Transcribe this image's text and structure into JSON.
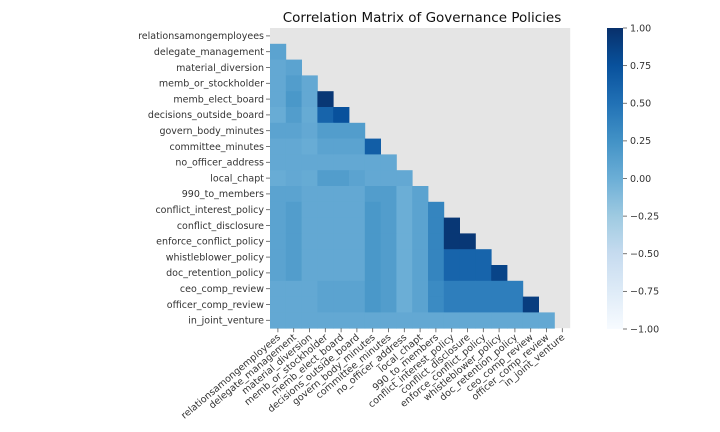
{
  "chart_data": {
    "type": "heatmap",
    "title": "Correlation Matrix of Governance Policies",
    "variables": [
      "relationsamongemployees",
      "delegate_management",
      "material_diversion",
      "memb_or_stockholder",
      "memb_elect_board",
      "decisions_outside_board",
      "govern_body_minutes",
      "committee_minutes",
      "no_officer_address",
      "local_chapt",
      "990_to_members",
      "conflict_interest_policy",
      "conflict_disclosure",
      "enforce_conflict_policy",
      "whistleblower_policy",
      "doc_retention_policy",
      "ceo_comp_review",
      "officer_comp_review",
      "in_joint_venture"
    ],
    "mask": "upper-triangle-and-diagonal",
    "masked_color": "#e5e5e5",
    "matrix": [
      [
        null,
        null,
        null,
        null,
        null,
        null,
        null,
        null,
        null,
        null,
        null,
        null,
        null,
        null,
        null,
        null,
        null,
        null,
        null
      ],
      [
        0.1,
        null,
        null,
        null,
        null,
        null,
        null,
        null,
        null,
        null,
        null,
        null,
        null,
        null,
        null,
        null,
        null,
        null,
        null
      ],
      [
        0.05,
        0.1,
        null,
        null,
        null,
        null,
        null,
        null,
        null,
        null,
        null,
        null,
        null,
        null,
        null,
        null,
        null,
        null,
        null
      ],
      [
        0.05,
        0.15,
        0.05,
        null,
        null,
        null,
        null,
        null,
        null,
        null,
        null,
        null,
        null,
        null,
        null,
        null,
        null,
        null,
        null
      ],
      [
        0.05,
        0.2,
        0.05,
        0.95,
        null,
        null,
        null,
        null,
        null,
        null,
        null,
        null,
        null,
        null,
        null,
        null,
        null,
        null,
        null
      ],
      [
        0.02,
        0.15,
        0.03,
        0.6,
        0.75,
        null,
        null,
        null,
        null,
        null,
        null,
        null,
        null,
        null,
        null,
        null,
        null,
        null,
        null
      ],
      [
        0.1,
        0.1,
        0.05,
        0.15,
        0.15,
        0.15,
        null,
        null,
        null,
        null,
        null,
        null,
        null,
        null,
        null,
        null,
        null,
        null,
        null
      ],
      [
        0.05,
        0.05,
        0.02,
        0.1,
        0.1,
        0.1,
        0.65,
        null,
        null,
        null,
        null,
        null,
        null,
        null,
        null,
        null,
        null,
        null,
        null
      ],
      [
        0.05,
        0.05,
        0.05,
        0.05,
        0.05,
        0.05,
        0.05,
        0.05,
        null,
        null,
        null,
        null,
        null,
        null,
        null,
        null,
        null,
        null,
        null
      ],
      [
        0.02,
        0.05,
        0.03,
        0.15,
        0.15,
        0.1,
        0.05,
        0.05,
        0.05,
        null,
        null,
        null,
        null,
        null,
        null,
        null,
        null,
        null,
        null
      ],
      [
        0.1,
        0.1,
        0.05,
        0.05,
        0.05,
        0.05,
        0.15,
        0.15,
        0.0,
        0.1,
        null,
        null,
        null,
        null,
        null,
        null,
        null,
        null,
        null
      ],
      [
        0.1,
        0.15,
        0.05,
        0.05,
        0.05,
        0.05,
        0.2,
        0.15,
        0.0,
        0.1,
        0.35,
        null,
        null,
        null,
        null,
        null,
        null,
        null,
        null
      ],
      [
        0.1,
        0.15,
        0.05,
        0.05,
        0.05,
        0.05,
        0.2,
        0.15,
        0.0,
        0.1,
        0.35,
        0.95,
        null,
        null,
        null,
        null,
        null,
        null,
        null
      ],
      [
        0.1,
        0.15,
        0.05,
        0.05,
        0.05,
        0.05,
        0.2,
        0.15,
        0.0,
        0.1,
        0.35,
        0.95,
        0.95,
        null,
        null,
        null,
        null,
        null,
        null
      ],
      [
        0.1,
        0.15,
        0.05,
        0.05,
        0.05,
        0.05,
        0.2,
        0.15,
        0.0,
        0.1,
        0.35,
        0.6,
        0.6,
        0.6,
        null,
        null,
        null,
        null,
        null
      ],
      [
        0.1,
        0.15,
        0.05,
        0.05,
        0.05,
        0.05,
        0.2,
        0.15,
        0.0,
        0.1,
        0.35,
        0.6,
        0.6,
        0.6,
        0.85,
        null,
        null,
        null,
        null
      ],
      [
        0.05,
        0.05,
        0.05,
        0.1,
        0.1,
        0.1,
        0.2,
        0.15,
        0.0,
        0.1,
        0.3,
        0.4,
        0.4,
        0.4,
        0.4,
        0.4,
        null,
        null,
        null
      ],
      [
        0.05,
        0.05,
        0.05,
        0.1,
        0.1,
        0.1,
        0.2,
        0.15,
        0.0,
        0.1,
        0.3,
        0.4,
        0.4,
        0.4,
        0.4,
        0.4,
        0.9,
        null,
        null
      ],
      [
        0.05,
        0.05,
        0.05,
        0.05,
        0.05,
        0.05,
        0.05,
        0.05,
        0.05,
        0.05,
        0.05,
        0.05,
        0.05,
        0.05,
        0.05,
        0.05,
        0.05,
        0.05,
        null
      ]
    ],
    "colorbar": {
      "min": -1.0,
      "max": 1.0,
      "ticks": [
        "1.00",
        "0.75",
        "0.50",
        "0.25",
        "0.00",
        "−0.25",
        "−0.50",
        "−0.75",
        "−1.00"
      ],
      "colormap": "Blues"
    }
  }
}
